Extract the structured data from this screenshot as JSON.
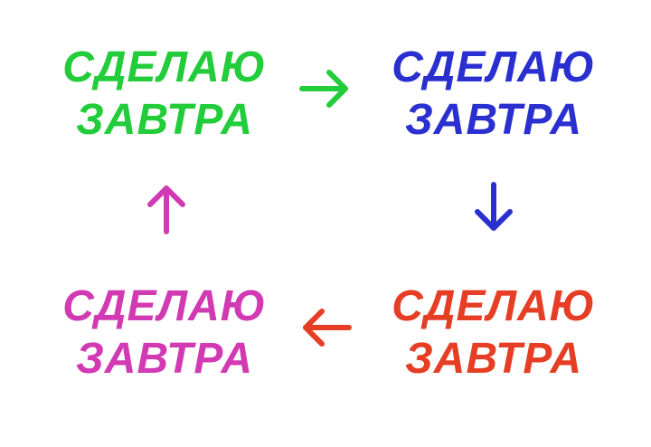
{
  "blocks": {
    "top_left": {
      "line1": "СДЕЛАЮ",
      "line2": "ЗАВТРА",
      "color": "#22cc3a"
    },
    "top_right": {
      "line1": "СДЕЛАЮ",
      "line2": "ЗАВТРА",
      "color": "#2a2fd0"
    },
    "bottom_right": {
      "line1": "СДЕЛАЮ",
      "line2": "ЗАВТРА",
      "color": "#e53e25"
    },
    "bottom_left": {
      "line1": "СДЕЛАЮ",
      "line2": "ЗАВТРА",
      "color": "#d13ab3"
    }
  },
  "arrows": [
    {
      "name": "arrow-right-icon",
      "color": "#22cc3a"
    },
    {
      "name": "arrow-down-icon",
      "color": "#2a2fd0"
    },
    {
      "name": "arrow-left-icon",
      "color": "#e53e25"
    },
    {
      "name": "arrow-up-icon",
      "color": "#d13ab3"
    }
  ]
}
